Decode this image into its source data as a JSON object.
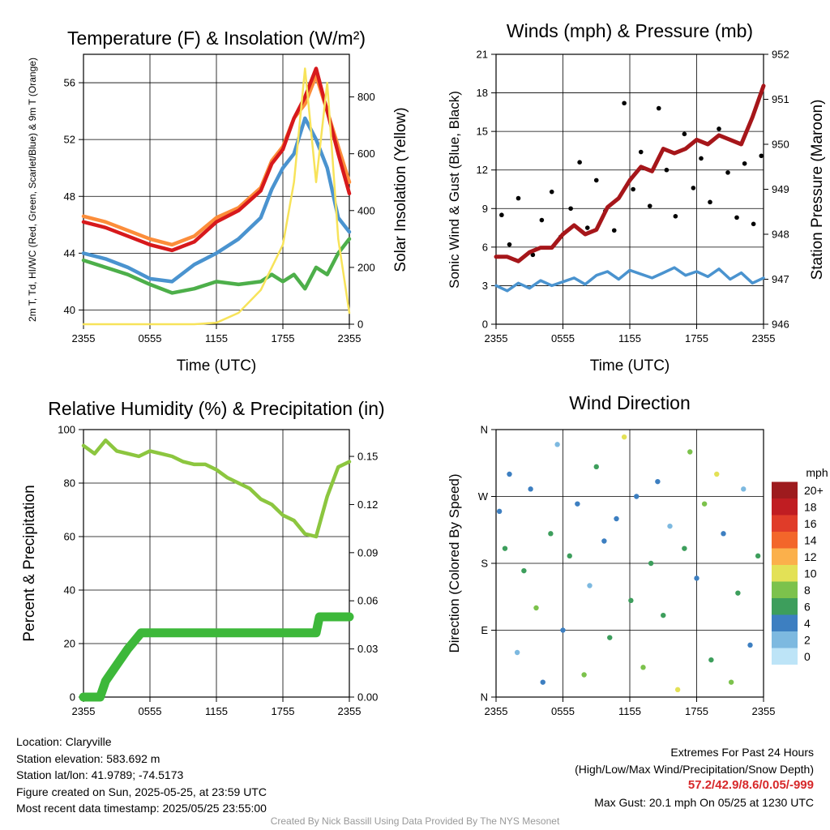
{
  "chart_data": [
    {
      "type": "line",
      "title": "Temperature (F) & Insolation (W/m²)",
      "xlabel": "Time (UTC)",
      "ylabel": "2m T, Td, HI/WC (Red, Green, Scarlet/Blue) & 9m T (Orange)",
      "ylabel_right": "Solar Insolation (Yellow)",
      "x_ticks": [
        "2355",
        "0555",
        "1155",
        "1755",
        "2355"
      ],
      "y_ticks": [
        40,
        44,
        48,
        52,
        56
      ],
      "y_ticks_right": [
        0,
        200,
        400,
        600,
        800
      ],
      "ylim": [
        39,
        58
      ],
      "ylim_right": [
        0,
        950
      ],
      "x_hours": [
        0,
        2,
        4,
        6,
        8,
        10,
        12,
        14,
        16,
        17,
        18,
        19,
        20,
        21,
        22,
        23,
        24
      ],
      "series": [
        {
          "color": "#fc8d3a",
          "values": [
            46.6,
            46.2,
            45.6,
            45.0,
            44.6,
            45.2,
            46.5,
            47.2,
            48.6,
            50.5,
            51.5,
            53.5,
            54.5,
            56.5,
            54.0,
            51.5,
            49.0
          ]
        },
        {
          "color": "#d7191c",
          "values": [
            46.2,
            45.8,
            45.2,
            44.6,
            44.2,
            44.8,
            46.2,
            47.0,
            48.4,
            50.3,
            51.3,
            53.5,
            55.0,
            57.0,
            54.0,
            51.0,
            48.2
          ]
        },
        {
          "color": "#4a93cf",
          "values": [
            44.0,
            43.6,
            43.0,
            42.2,
            42.0,
            43.2,
            44.0,
            45.0,
            46.5,
            48.5,
            50.0,
            51.0,
            53.5,
            52.0,
            50.0,
            46.5,
            45.5
          ]
        },
        {
          "color": "#4daf4a",
          "values": [
            43.5,
            43.0,
            42.5,
            41.8,
            41.2,
            41.5,
            42.0,
            41.8,
            42.0,
            42.5,
            42.0,
            42.5,
            41.5,
            43.0,
            42.5,
            44.0,
            45.0
          ]
        },
        {
          "axis": "right",
          "color": "#f7e35a",
          "values": [
            0,
            0,
            0,
            0,
            0,
            0,
            5,
            40,
            120,
            200,
            280,
            500,
            900,
            500,
            850,
            300,
            40
          ]
        }
      ]
    },
    {
      "type": "scatter",
      "title": "Winds (mph) & Pressure (mb)",
      "xlabel": "Time (UTC)",
      "ylabel": "Sonic Wind & Gust (Blue, Black)",
      "ylabel_right": "Station Pressure (Maroon)",
      "x_ticks": [
        "2355",
        "0555",
        "1155",
        "1755",
        "2355"
      ],
      "y_ticks": [
        0,
        3,
        6,
        9,
        12,
        15,
        18,
        21
      ],
      "y_ticks_right": [
        946,
        947,
        948,
        949,
        950,
        951,
        952
      ],
      "ylim": [
        0,
        21
      ],
      "ylim_right": [
        946,
        952
      ],
      "wind_x_hours": [
        0,
        1,
        2,
        3,
        4,
        5,
        6,
        7,
        8,
        9,
        10,
        11,
        12,
        13,
        14,
        15,
        16,
        17,
        18,
        19,
        20,
        21,
        22,
        23,
        24
      ],
      "wind_values": [
        3.0,
        2.6,
        3.2,
        2.8,
        3.4,
        3.0,
        3.3,
        3.6,
        3.1,
        3.8,
        4.1,
        3.5,
        4.2,
        3.9,
        3.6,
        4.0,
        4.4,
        3.8,
        4.1,
        3.7,
        4.3,
        3.5,
        4.0,
        3.2,
        3.6
      ],
      "gust_x_hours": [
        0.5,
        1.2,
        2.0,
        3.3,
        4.1,
        5.0,
        5.8,
        6.7,
        7.5,
        8.2,
        9.0,
        9.8,
        10.6,
        11.5,
        12.3,
        13.0,
        13.8,
        14.6,
        15.3,
        16.1,
        16.9,
        17.7,
        18.4,
        19.2,
        20.0,
        20.8,
        21.6,
        22.3,
        23.1,
        23.8
      ],
      "gust_values": [
        8.5,
        6.2,
        9.8,
        5.4,
        8.1,
        10.3,
        6.8,
        9.0,
        12.6,
        7.5,
        11.2,
        8.8,
        7.3,
        17.2,
        10.5,
        13.4,
        9.2,
        16.8,
        12.0,
        8.4,
        14.8,
        10.6,
        12.9,
        9.5,
        15.2,
        11.8,
        8.3,
        12.5,
        7.8,
        13.1
      ],
      "pressure_x_hours": [
        0,
        1,
        2,
        3,
        4,
        5,
        6,
        7,
        8,
        9,
        10,
        11,
        12,
        13,
        14,
        15,
        16,
        17,
        18,
        19,
        20,
        21,
        22,
        23,
        24
      ],
      "pressure_values": [
        947.5,
        947.5,
        947.4,
        947.6,
        947.7,
        947.7,
        948.0,
        948.2,
        948.0,
        948.1,
        948.6,
        948.8,
        949.2,
        949.5,
        949.4,
        949.9,
        949.8,
        949.9,
        950.1,
        950.0,
        950.2,
        950.1,
        950.0,
        950.6,
        951.3
      ]
    },
    {
      "type": "line",
      "title": "Relative Humidity (%) & Precipitation (in)",
      "ylabel": "Percent & Precipitation",
      "x_ticks": [
        "2355",
        "0555",
        "1155",
        "1755",
        "2355"
      ],
      "y_ticks": [
        0,
        20,
        40,
        60,
        80,
        100
      ],
      "y_ticks_right": [
        "0.00",
        "0.03",
        "0.06",
        "0.09",
        "0.12",
        "0.15"
      ],
      "ylim": [
        0,
        100
      ],
      "ylim_right": [
        0,
        0.1667
      ],
      "x_hours": [
        0,
        1,
        2,
        3,
        4,
        5,
        6,
        7,
        8,
        9,
        10,
        11,
        12,
        13,
        14,
        15,
        16,
        17,
        18,
        19,
        20,
        21,
        22,
        23,
        24
      ],
      "rh_values": [
        94,
        91,
        96,
        92,
        91,
        90,
        92,
        91,
        90,
        88,
        87,
        87,
        85,
        82,
        80,
        78,
        74,
        72,
        68,
        66,
        61,
        60,
        75,
        86,
        88
      ],
      "precip_x_hours": [
        0,
        1.5,
        2.0,
        3.0,
        4.0,
        4.6,
        5.2,
        6.0,
        10.0,
        14.0,
        18.0,
        21.0,
        21.3,
        24.0
      ],
      "precip_values": [
        0.0,
        0.0,
        0.01,
        0.02,
        0.03,
        0.035,
        0.04,
        0.04,
        0.04,
        0.04,
        0.04,
        0.04,
        0.05,
        0.05
      ]
    },
    {
      "type": "scatter",
      "title": "Wind Direction",
      "ylabel": "Direction (Colored By Speed)",
      "x_ticks": [
        "2355",
        "0555",
        "1155",
        "1755",
        "2355"
      ],
      "y_ticks": [
        "N",
        "E",
        "S",
        "W",
        "N"
      ],
      "ylim": [
        0,
        360
      ],
      "legend_title": "mph",
      "legend_labels": [
        "0",
        "2",
        "4",
        "6",
        "8",
        "10",
        "12",
        "14",
        "16",
        "18",
        "20+"
      ],
      "legend_colors": [
        "#bde4f7",
        "#7db9e0",
        "#3d7fc1",
        "#3d9e5c",
        "#7cc24c",
        "#e3e156",
        "#fbb04b",
        "#f3662a",
        "#e03c29",
        "#c01d22",
        "#9e1b1e"
      ],
      "x_hours": [
        0.3,
        0.8,
        1.2,
        1.9,
        2.5,
        3.1,
        3.6,
        4.2,
        4.9,
        5.5,
        6.0,
        6.6,
        7.3,
        7.9,
        8.4,
        9.0,
        9.7,
        10.2,
        10.8,
        11.5,
        12.1,
        12.6,
        13.2,
        13.9,
        14.5,
        15.0,
        15.6,
        16.3,
        16.9,
        17.4,
        18.0,
        18.7,
        19.3,
        19.8,
        20.4,
        21.1,
        21.7,
        22.2,
        22.8,
        23.5
      ],
      "directions": [
        250,
        200,
        300,
        60,
        170,
        280,
        120,
        20,
        220,
        340,
        90,
        190,
        260,
        30,
        150,
        310,
        210,
        80,
        240,
        350,
        130,
        270,
        40,
        180,
        290,
        110,
        230,
        10,
        200,
        330,
        160,
        260,
        50,
        300,
        220,
        20,
        140,
        280,
        70,
        190
      ],
      "speed_bins": [
        2,
        3,
        2,
        1,
        3,
        2,
        4,
        2,
        3,
        1,
        2,
        3,
        2,
        4,
        1,
        3,
        2,
        3,
        2,
        5,
        3,
        2,
        4,
        3,
        2,
        3,
        1,
        5,
        3,
        4,
        2,
        4,
        3,
        5,
        2,
        4,
        3,
        1,
        2,
        3
      ]
    }
  ],
  "info": {
    "location": "Location: Claryville",
    "elevation": "Station elevation: 583.692 m",
    "latlon": "Station lat/lon: 41.9789; -74.5173",
    "created": "Figure created on Sun, 2025-05-25, at 23:59 UTC",
    "recent": "Most recent data timestamp: 2025/05/25 23:55:00"
  },
  "extremes": {
    "title": "Extremes For Past 24 Hours",
    "subtitle": "(High/Low/Max Wind/Precipitation/Snow Depth)",
    "values": "57.2/42.9/8.6/0.05/-999",
    "gust": "Max Gust: 20.1 mph On 05/25 at 1230 UTC"
  },
  "credit": "Created By Nick Bassill Using Data Provided By The NYS Mesonet"
}
